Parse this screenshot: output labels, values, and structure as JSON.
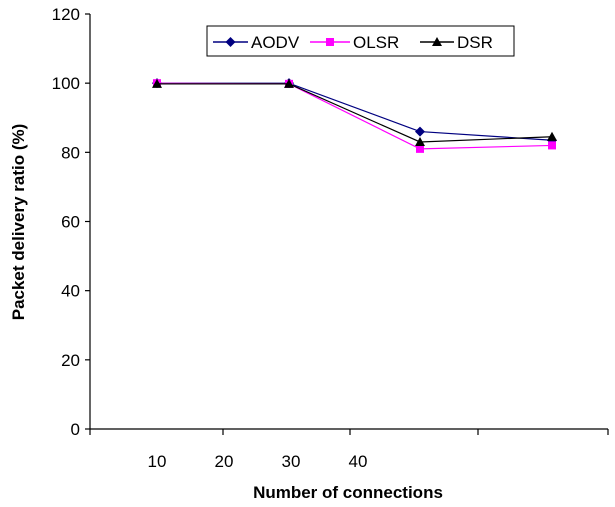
{
  "chart_data": {
    "type": "line",
    "title": "",
    "xlabel": "Number of connections",
    "ylabel": "Packet delivery ratio (%)",
    "categories": [
      "10",
      "20",
      "30",
      "40"
    ],
    "ylim": [
      0,
      120
    ],
    "yticks": [
      "0",
      "20",
      "40",
      "60",
      "80",
      "100",
      "120"
    ],
    "grid": false,
    "legend": "top-center",
    "series": [
      {
        "name": "AODV",
        "values": [
          100,
          100,
          86,
          83.5
        ],
        "color": "#000080",
        "marker": "diamond"
      },
      {
        "name": "OLSR",
        "values": [
          100,
          99.8,
          81,
          82
        ],
        "color": "#ff00ff",
        "marker": "square"
      },
      {
        "name": "DSR",
        "values": [
          99.8,
          99.8,
          83,
          84.5
        ],
        "color": "#000000",
        "marker": "triangle"
      }
    ]
  }
}
